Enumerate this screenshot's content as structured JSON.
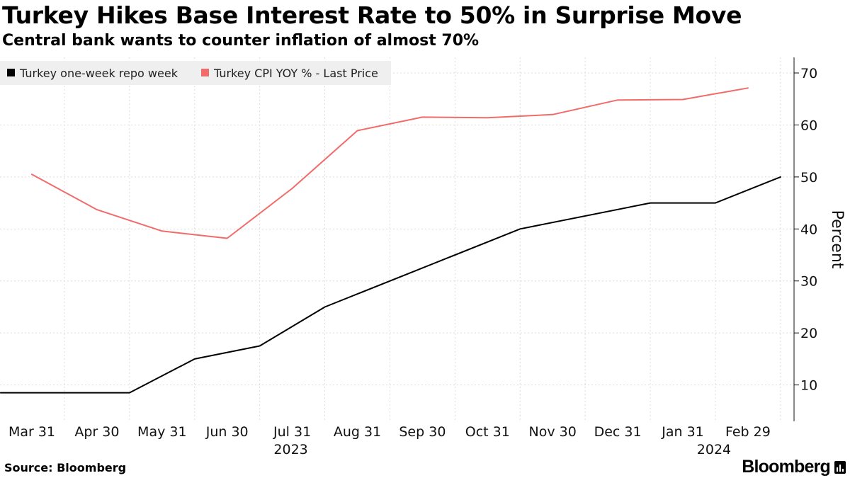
{
  "header": {
    "title": "Turkey Hikes Base Interest Rate to 50% in Surprise Move",
    "subtitle": "Central bank wants to counter inflation of almost 70%"
  },
  "footer": {
    "source": "Source: Bloomberg",
    "brand": "Bloomberg"
  },
  "chart_data": {
    "type": "line",
    "title": "Turkey Hikes Base Interest Rate to 50% in Surprise Move",
    "subtitle": "Central bank wants to counter inflation of almost 70%",
    "xlabel": "",
    "ylabel": "Percent",
    "ylim": [
      3,
      73
    ],
    "yticks": [
      10,
      20,
      30,
      40,
      50,
      60,
      70
    ],
    "grid": true,
    "legend_position": "top-left",
    "x_tick_labels": [
      "Mar 31",
      "Apr 30",
      "May 31",
      "Jun 30",
      "Jul 31",
      "Aug 31",
      "Sep 30",
      "Oct 31",
      "Nov 30",
      "Dec 31",
      "Jan 31",
      "Feb 29"
    ],
    "x_year_labels": [
      {
        "label": "2023",
        "month_index": 4
      },
      {
        "label": "2024",
        "month_index": 10.5
      }
    ],
    "series": [
      {
        "name": "Turkey one-week repo week",
        "color": "#000000",
        "points": [
          {
            "x": -0.48,
            "y": 8.5
          },
          {
            "x": 1.5,
            "y": 8.5
          },
          {
            "x": 2.5,
            "y": 15
          },
          {
            "x": 3.5,
            "y": 17.5
          },
          {
            "x": 4.5,
            "y": 25
          },
          {
            "x": 7.5,
            "y": 40
          },
          {
            "x": 9.5,
            "y": 45
          },
          {
            "x": 10.5,
            "y": 45
          },
          {
            "x": 11.5,
            "y": 50
          }
        ]
      },
      {
        "name": "Turkey CPI YOY % - Last Price",
        "color": "#f26b6b",
        "points": [
          {
            "x": 0,
            "y": 50.5
          },
          {
            "x": 1,
            "y": 43.7
          },
          {
            "x": 2,
            "y": 39.6
          },
          {
            "x": 3,
            "y": 38.2
          },
          {
            "x": 4,
            "y": 47.8
          },
          {
            "x": 5,
            "y": 58.9
          },
          {
            "x": 6,
            "y": 61.5
          },
          {
            "x": 7,
            "y": 61.4
          },
          {
            "x": 8,
            "y": 62
          },
          {
            "x": 9,
            "y": 64.8
          },
          {
            "x": 10,
            "y": 64.9
          },
          {
            "x": 11,
            "y": 67.1
          }
        ]
      }
    ]
  }
}
